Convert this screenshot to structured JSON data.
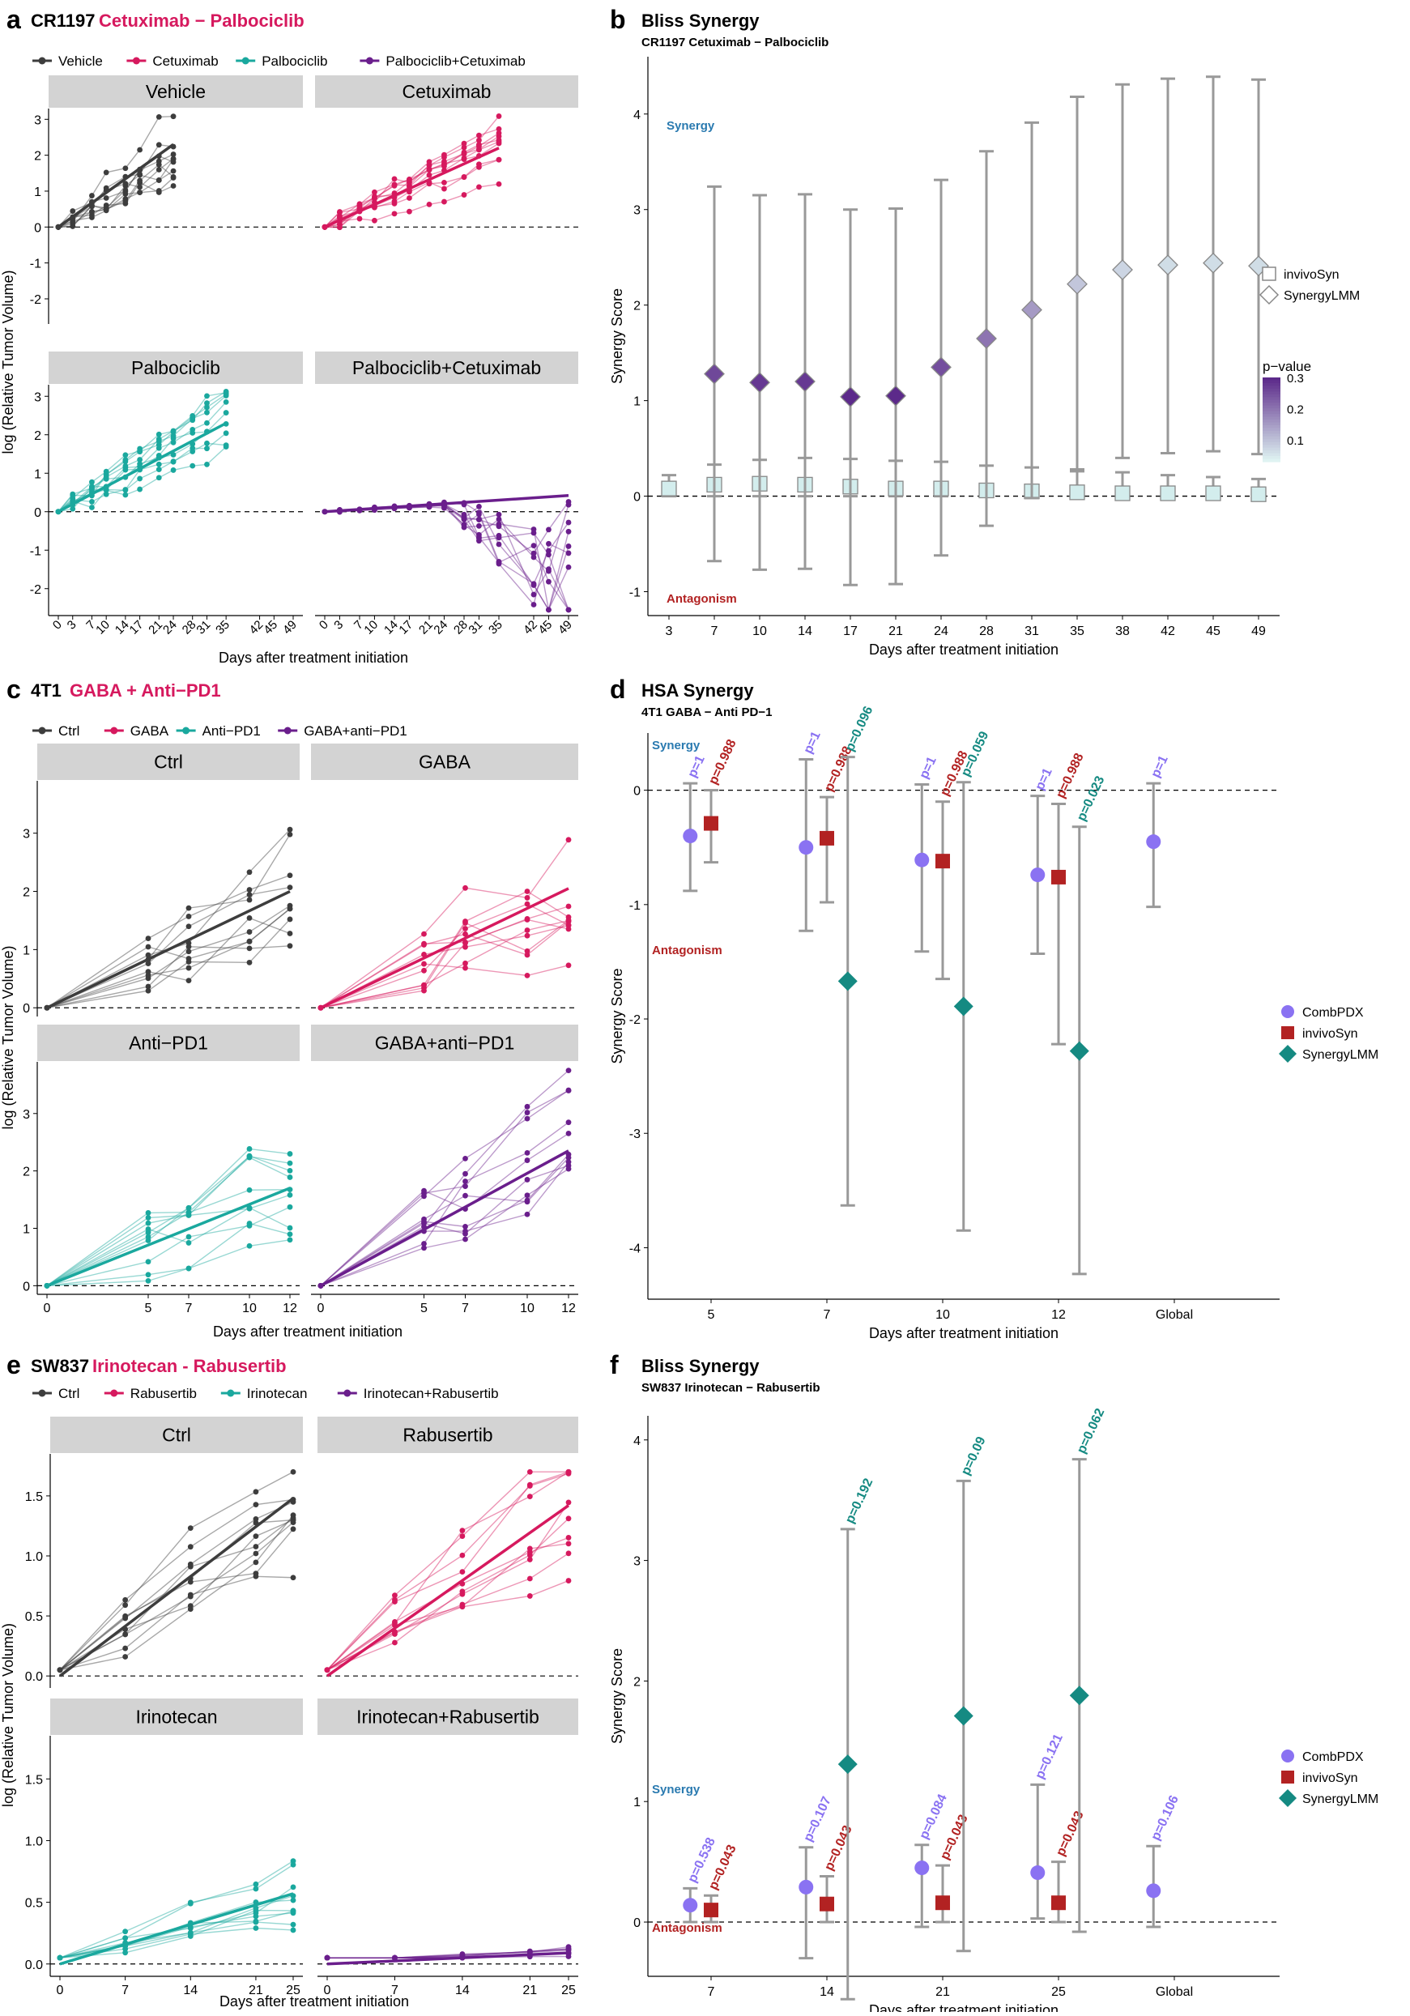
{
  "colors": {
    "vehicle": "#3d3d3d",
    "cetuximab": "#d6195e",
    "palbo": "#1aa89e",
    "combo": "#6a1e8c",
    "combpdx": "#8a72f2",
    "invivosyn": "#b22222",
    "synergylmm": "#158a82",
    "synergy_text": "#2a7ab0",
    "antagonism_text": "#b22222",
    "strip": "#d3d3d3"
  },
  "chart_data": [
    {
      "id": "a",
      "type": "line",
      "panel_letter": "a",
      "title_prefix": "CR1197",
      "title_highlight": "Cetuximab − Palbociclib",
      "legend": [
        "Vehicle",
        "Cetuximab",
        "Palbociclib",
        "Palbociclib+Cetuximab"
      ],
      "facets": [
        "Vehicle",
        "Cetuximab",
        "Palbociclib",
        "Palbociclib+Cetuximab"
      ],
      "xlabel": "Days after treatment initiation",
      "ylabel": "log (Relative Tumor Volume)",
      "xticks": [
        0,
        3,
        7,
        10,
        14,
        17,
        21,
        24,
        28,
        31,
        35,
        42,
        45,
        49
      ],
      "xtick_labels": [
        "0",
        "3",
        "7",
        "10",
        "14",
        "17",
        "21",
        "24",
        "28",
        "31",
        "35",
        "42",
        "45",
        "49"
      ],
      "ylim": [
        -2.7,
        3.3
      ],
      "yticks": [
        -2,
        -1,
        0,
        1,
        2,
        3
      ],
      "fits": [
        {
          "x0": 0,
          "y0": 0,
          "x1": 24,
          "y1": 2.3
        },
        {
          "x0": 0,
          "y0": 0,
          "x1": 35,
          "y1": 2.2
        },
        {
          "x0": 0,
          "y0": 0,
          "x1": 35,
          "y1": 2.3
        },
        {
          "x0": 0,
          "y0": 0,
          "x1": 49,
          "y1": 0.42
        }
      ]
    },
    {
      "id": "b",
      "type": "scatter",
      "panel_letter": "b",
      "title": "Bliss Synergy",
      "subtitle": "CR1197 Cetuximab − Palbociclib",
      "xlabel": "Days after treatment initiation",
      "ylabel": "Synergy Score",
      "categories": [
        "3",
        "7",
        "10",
        "14",
        "17",
        "21",
        "24",
        "28",
        "31",
        "35",
        "38",
        "42",
        "45",
        "49"
      ],
      "ylim": [
        -1.25,
        4.6
      ],
      "yticks": [
        -1,
        0,
        1,
        2,
        3,
        4
      ],
      "synergy_label": "Synergy",
      "antagonism_label": "Antagonism",
      "series": [
        {
          "name": "invivoSyn",
          "values": [
            0.08,
            0.12,
            0.13,
            0.12,
            0.1,
            0.08,
            0.08,
            0.06,
            0.05,
            0.04,
            0.03,
            0.03,
            0.03,
            0.02
          ],
          "lower": [
            0,
            0,
            0,
            0,
            0,
            0,
            0,
            0,
            0,
            0,
            0,
            0,
            0,
            0
          ],
          "upper": [
            0.22,
            0.33,
            0.38,
            0.4,
            0.39,
            0.37,
            0.36,
            0.32,
            0.3,
            0.28,
            0.25,
            0.22,
            0.2,
            0.18
          ]
        },
        {
          "name": "SynergyLMM",
          "values": [
            null,
            1.28,
            1.19,
            1.2,
            1.04,
            1.05,
            1.35,
            1.65,
            1.95,
            2.22,
            2.37,
            2.42,
            2.44,
            2.41
          ],
          "lower": [
            null,
            -0.68,
            -0.77,
            -0.76,
            -0.93,
            -0.92,
            -0.62,
            -0.31,
            -0.02,
            0.26,
            0.4,
            0.45,
            0.47,
            0.44
          ],
          "upper": [
            null,
            3.24,
            3.15,
            3.16,
            3.0,
            3.01,
            3.31,
            3.61,
            3.91,
            4.18,
            4.31,
            4.37,
            4.39,
            4.36
          ],
          "pvalues": [
            null,
            0.26,
            0.28,
            0.28,
            0.3,
            0.3,
            0.25,
            0.2,
            0.15,
            0.09,
            0.07,
            0.06,
            0.06,
            0.06
          ]
        }
      ],
      "legend_items": [
        "invivoSyn",
        "SynergyLMM"
      ],
      "colorbar_title": "p−value",
      "colorbar_ticks": [
        "0.3",
        "0.2",
        "0.1"
      ],
      "colorbar_range": [
        0.03,
        0.3
      ]
    },
    {
      "id": "c",
      "type": "line",
      "panel_letter": "c",
      "title_prefix": "4T1",
      "title_highlight": "GABA + Anti−PD1",
      "legend": [
        "Ctrl",
        "GABA",
        "Anti−PD1",
        "GABA+anti−PD1"
      ],
      "facets": [
        "Ctrl",
        "GABA",
        "Anti−PD1",
        "GABA+anti−PD1"
      ],
      "xlabel": "Days after treatment initiation",
      "ylabel": "log (Relative Tumor Volume)",
      "xticks": [
        0,
        5,
        7,
        10,
        12
      ],
      "xtick_labels": [
        "0",
        "5",
        "7",
        "10",
        "12"
      ],
      "ylim": [
        -0.15,
        3.9
      ],
      "yticks": [
        0,
        1,
        2,
        3
      ],
      "fits": [
        {
          "x0": 0,
          "y0": 0,
          "x1": 12,
          "y1": 2.0
        },
        {
          "x0": 0,
          "y0": 0,
          "x1": 12,
          "y1": 2.05
        },
        {
          "x0": 0,
          "y0": 0,
          "x1": 12,
          "y1": 1.7
        },
        {
          "x0": 0,
          "y0": 0,
          "x1": 12,
          "y1": 2.35
        }
      ]
    },
    {
      "id": "d",
      "type": "scatter",
      "panel_letter": "d",
      "title": "HSA Synergy",
      "subtitle": "4T1 GABA − Anti PD−1",
      "xlabel": "Days after treatment initiation",
      "ylabel": "Synergy Score",
      "categories": [
        "5",
        "7",
        "10",
        "12",
        "Global"
      ],
      "ylim": [
        -4.45,
        0.5
      ],
      "yticks": [
        -4,
        -3,
        -2,
        -1,
        0
      ],
      "synergy_label": "Synergy",
      "antagonism_label": "Antagonism",
      "series": [
        {
          "name": "CombPDX",
          "offset": -0.18,
          "values": [
            -0.4,
            -0.5,
            -0.61,
            -0.74,
            -0.45
          ],
          "lower": [
            -0.88,
            -1.23,
            -1.41,
            -1.43,
            -1.02
          ],
          "upper": [
            0.06,
            0.27,
            0.05,
            -0.05,
            0.06
          ],
          "labels": [
            "p=1",
            "p=1",
            "p=1",
            "p=1",
            "p=1"
          ]
        },
        {
          "name": "invivoSyn",
          "offset": 0.0,
          "values": [
            -0.29,
            -0.42,
            -0.62,
            -0.76,
            null
          ],
          "lower": [
            -0.63,
            -0.98,
            -1.65,
            -2.22,
            null
          ],
          "upper": [
            0.0,
            -0.06,
            -0.1,
            -0.12,
            null
          ],
          "labels": [
            "p=0.988",
            "p=0.988",
            "p=0.988",
            "p=0.988",
            ""
          ]
        },
        {
          "name": "SynergyLMM",
          "offset": 0.18,
          "values": [
            null,
            -1.67,
            -1.89,
            -2.28,
            null
          ],
          "lower": [
            null,
            -3.63,
            -3.85,
            -4.23,
            null
          ],
          "upper": [
            null,
            0.29,
            0.07,
            -0.32,
            null
          ],
          "labels": [
            "",
            "p=0.096",
            "p=0.059",
            "p=0.023",
            ""
          ]
        }
      ],
      "legend_items": [
        "CombPDX",
        "invivoSyn",
        "SynergyLMM"
      ]
    },
    {
      "id": "e",
      "type": "line",
      "panel_letter": "e",
      "title_prefix": "SW837",
      "title_highlight": "Irinotecan - Rabusertib",
      "legend": [
        "Ctrl",
        "Rabusertib",
        "Irinotecan",
        "Irinotecan+Rabusertib"
      ],
      "facets": [
        "Ctrl",
        "Rabusertib",
        "Irinotecan",
        "Irinotecan+Rabusertib"
      ],
      "xlabel": "Days after treatment initiation",
      "ylabel": "log (Relative Tumor Volume)",
      "xticks": [
        0,
        7,
        14,
        21,
        25
      ],
      "xtick_labels": [
        "0",
        "7",
        "14",
        "21",
        "25"
      ],
      "ylim": [
        -0.1,
        1.85
      ],
      "yticks": [
        0.0,
        0.5,
        1.0,
        1.5
      ],
      "ytick_labels": [
        "0.0",
        "0.5",
        "1.0",
        "1.5"
      ],
      "fits": [
        {
          "x0": 0,
          "y0": 0,
          "x1": 25,
          "y1": 1.48
        },
        {
          "x0": 0,
          "y0": 0,
          "x1": 25,
          "y1": 1.42
        },
        {
          "x0": 0,
          "y0": 0,
          "x1": 25,
          "y1": 0.57
        },
        {
          "x0": 0,
          "y0": 0,
          "x1": 25,
          "y1": 0.09
        }
      ]
    },
    {
      "id": "f",
      "type": "scatter",
      "panel_letter": "f",
      "title": "Bliss Synergy",
      "subtitle": "SW837 Irinotecan − Rabusertib",
      "xlabel": "Days after treatment initiation",
      "ylabel": "Synergy Score",
      "categories": [
        "7",
        "14",
        "21",
        "25",
        "Global"
      ],
      "ylim": [
        -0.45,
        4.2
      ],
      "yticks": [
        0,
        1,
        2,
        3,
        4
      ],
      "synergy_label": "Synergy",
      "antagonism_label": "Antagonism",
      "series": [
        {
          "name": "CombPDX",
          "offset": -0.18,
          "values": [
            0.14,
            0.29,
            0.45,
            0.41,
            0.26
          ],
          "lower": [
            0.0,
            -0.3,
            -0.04,
            0.03,
            -0.04
          ],
          "upper": [
            0.28,
            0.62,
            0.64,
            1.14,
            0.63
          ],
          "labels": [
            "p=0.538",
            "p=0.107",
            "p=0.084",
            "p=0.121",
            "p=0.106"
          ]
        },
        {
          "name": "invivoSyn",
          "offset": 0.0,
          "values": [
            0.1,
            0.15,
            0.16,
            0.16,
            null
          ],
          "lower": [
            0.0,
            0.0,
            0.0,
            0.0,
            null
          ],
          "upper": [
            0.22,
            0.38,
            0.47,
            0.5,
            null
          ],
          "labels": [
            "p=0.043",
            "p=0.043",
            "p=0.043",
            "p=0.043",
            ""
          ]
        },
        {
          "name": "SynergyLMM",
          "offset": 0.18,
          "values": [
            null,
            1.31,
            1.71,
            1.88,
            null
          ],
          "lower": [
            null,
            -0.64,
            -0.24,
            -0.08,
            null
          ],
          "upper": [
            null,
            3.26,
            3.66,
            3.84,
            null
          ],
          "labels": [
            "",
            "p=0.192",
            "p=0.09",
            "p=0.062",
            ""
          ]
        }
      ],
      "legend_items": [
        "CombPDX",
        "invivoSyn",
        "SynergyLMM"
      ]
    }
  ]
}
